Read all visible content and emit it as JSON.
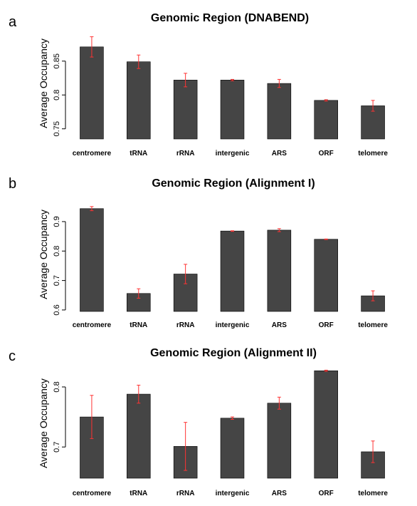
{
  "colors": {
    "bar": "#454545",
    "error": "#ff3333"
  },
  "chart_data": [
    {
      "type": "bar",
      "panel_label": "a",
      "title": "Genomic Region (DNABEND)",
      "xlabel": "",
      "ylabel": "Average Occupancy",
      "categories": [
        "centromere",
        "tRNA",
        "rRNA",
        "intergenic",
        "ARS",
        "ORF",
        "telomere"
      ],
      "values": [
        0.871,
        0.849,
        0.822,
        0.822,
        0.817,
        0.792,
        0.784
      ],
      "errors": [
        0.015,
        0.01,
        0.01,
        0.001,
        0.006,
        0.001,
        0.008
      ],
      "ylim": [
        0.735,
        0.895
      ],
      "yticks": [
        0.75,
        0.8,
        0.85
      ],
      "ytick_labels": [
        "0.75",
        "0.8",
        "0.85"
      ]
    },
    {
      "type": "bar",
      "panel_label": "b",
      "title": "Genomic Region (Alignment I)",
      "xlabel": "",
      "ylabel": "Average Occupancy",
      "categories": [
        "centromere",
        "tRNA",
        "rRNA",
        "intergenic",
        "ARS",
        "ORF",
        "telomere"
      ],
      "values": [
        0.944,
        0.656,
        0.722,
        0.868,
        0.871,
        0.84,
        0.648
      ],
      "errors": [
        0.007,
        0.016,
        0.033,
        0.001,
        0.005,
        0.001,
        0.017
      ],
      "ylim": [
        0.595,
        0.97
      ],
      "yticks": [
        0.6,
        0.7,
        0.8,
        0.9
      ],
      "ytick_labels": [
        "0.6",
        "0.7",
        "0.8",
        "0.9"
      ]
    },
    {
      "type": "bar",
      "panel_label": "c",
      "title": "Genomic Region (Alignment II)",
      "xlabel": "",
      "ylabel": "Average Occupancy",
      "categories": [
        "centromere",
        "tRNA",
        "rRNA",
        "intergenic",
        "ARS",
        "ORF",
        "telomere"
      ],
      "values": [
        0.75,
        0.788,
        0.701,
        0.748,
        0.773,
        0.827,
        0.692
      ],
      "errors": [
        0.036,
        0.015,
        0.04,
        0.002,
        0.01,
        0.001,
        0.018
      ],
      "ylim": [
        0.648,
        0.832
      ],
      "yticks": [
        0.7,
        0.8
      ],
      "ytick_labels": [
        "0.7",
        "0.8"
      ]
    }
  ]
}
